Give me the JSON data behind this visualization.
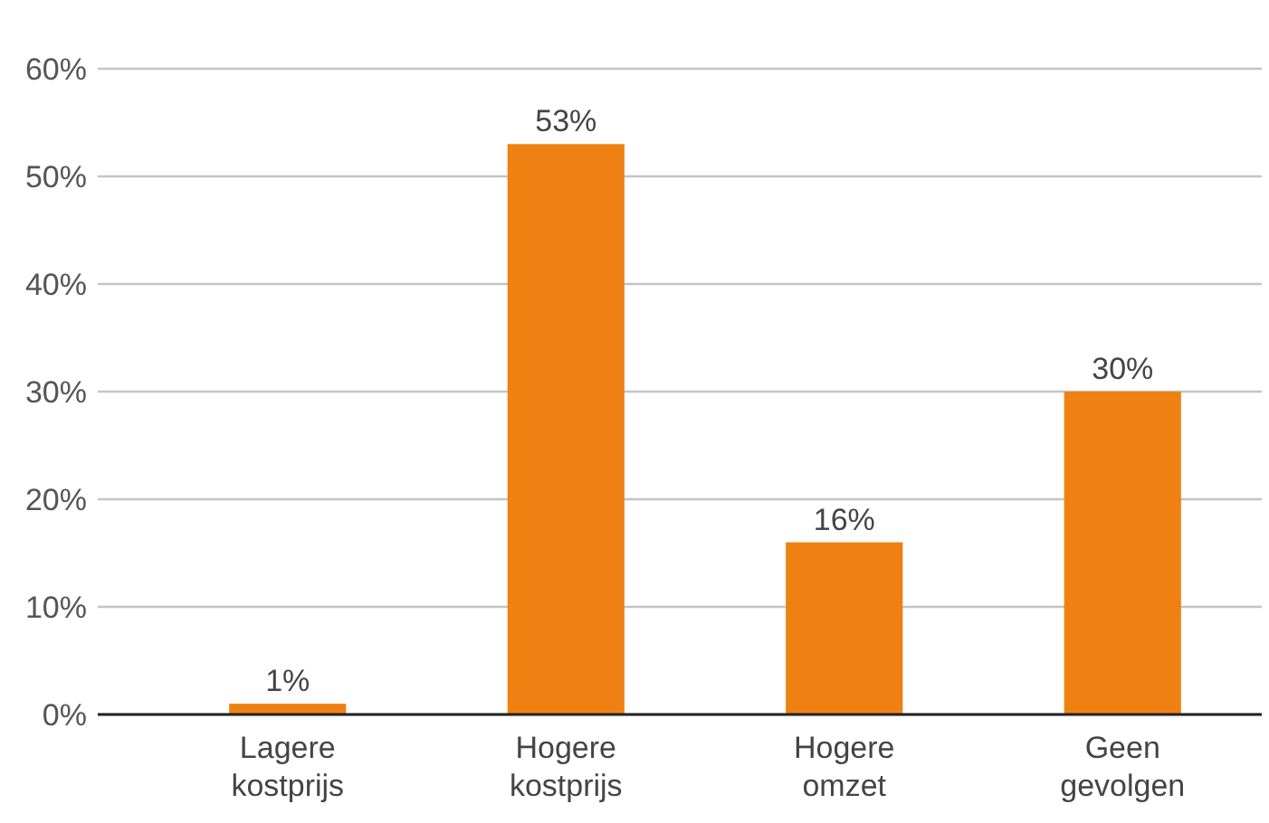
{
  "chart_data": {
    "type": "bar",
    "categories": [
      "Lagere kostprijs",
      "Hogere kostprijs",
      "Hogere omzet",
      "Geen gevolgen"
    ],
    "values": [
      1,
      53,
      16,
      30
    ],
    "color": "#ef8113",
    "ylim": [
      0,
      60
    ],
    "yticks": [
      {
        "value": 0,
        "label": "0%"
      },
      {
        "value": 10,
        "label": "10%"
      },
      {
        "value": 20,
        "label": "20%"
      },
      {
        "value": 30,
        "label": "30%"
      },
      {
        "value": 40,
        "label": "40%"
      },
      {
        "value": 50,
        "label": "50%"
      },
      {
        "value": 60,
        "label": "60%"
      }
    ],
    "value_labels": [
      "1%",
      "53%",
      "16%",
      "30%"
    ],
    "grid": "y"
  }
}
